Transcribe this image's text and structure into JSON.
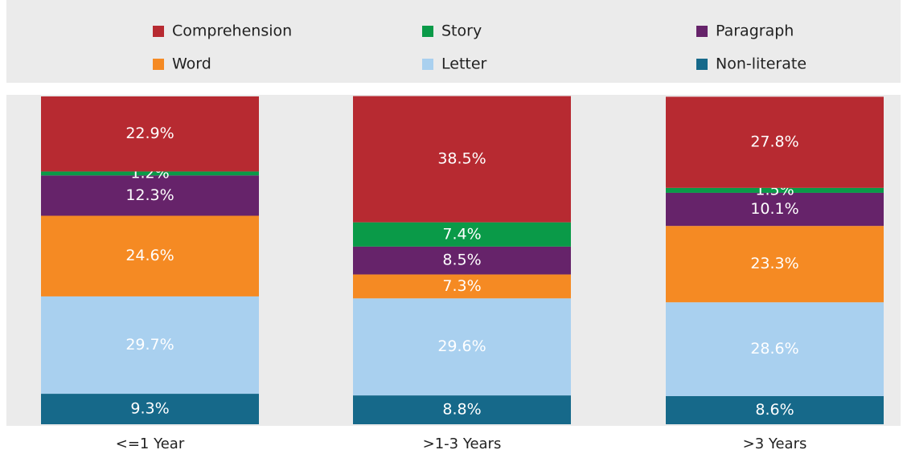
{
  "chart_data": {
    "type": "stacked_bar",
    "categories": [
      "<=1 Year",
      ">1-3 Years",
      ">3 Years"
    ],
    "ylim": [
      0,
      100
    ],
    "series": [
      {
        "name": "Comprehension",
        "color": "#b72a31",
        "values": [
          22.9,
          38.5,
          27.8
        ],
        "value_labels": [
          "22.9%",
          "38.5%",
          "27.8%"
        ]
      },
      {
        "name": "Story",
        "color": "#0a9a48",
        "values": [
          1.2,
          7.4,
          1.5
        ],
        "value_labels": [
          "1.2%",
          "7.4%",
          "1.5%"
        ]
      },
      {
        "name": "Paragraph",
        "color": "#66236a",
        "values": [
          12.3,
          8.5,
          10.1
        ],
        "value_labels": [
          "12.3%",
          "8.5%",
          "10.1%"
        ]
      },
      {
        "name": "Word",
        "color": "#f58a23",
        "values": [
          24.6,
          7.3,
          23.3
        ],
        "value_labels": [
          "24.6%",
          "7.3%",
          "23.3%"
        ]
      },
      {
        "name": "Letter",
        "color": "#a9d0ef",
        "values": [
          29.7,
          29.6,
          28.6
        ],
        "value_labels": [
          "29.7%",
          "29.6%",
          "28.6%"
        ]
      },
      {
        "name": "Non-literate",
        "color": "#16698a",
        "values": [
          9.3,
          8.8,
          8.6
        ],
        "value_labels": [
          "9.3%",
          "8.8%",
          "8.6%"
        ]
      }
    ]
  }
}
